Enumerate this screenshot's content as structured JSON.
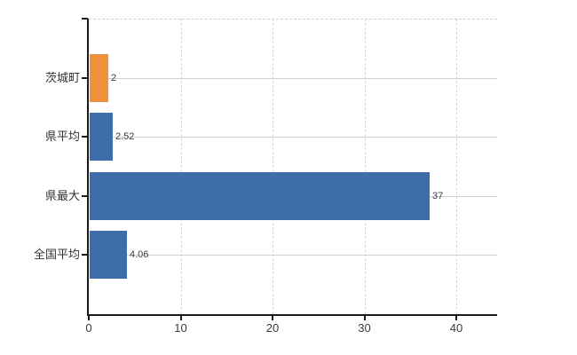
{
  "chart_data": {
    "type": "bar",
    "orientation": "horizontal",
    "title": "",
    "xlabel": "",
    "ylabel": "",
    "categories": [
      "茨城町",
      "県平均",
      "県最大",
      "全国平均"
    ],
    "values": [
      2,
      2.52,
      37,
      4.06
    ],
    "value_labels": [
      "2",
      "2.52",
      "37",
      "4.06"
    ],
    "series": [
      {
        "name": "値",
        "values": [
          2,
          2.52,
          37,
          4.06
        ],
        "colors": [
          "#EF9139",
          "#3E6DA9",
          "#3E6DA9",
          "#3E6DA9"
        ]
      }
    ],
    "x_ticks": [
      0,
      10,
      20,
      30,
      40
    ],
    "x_tick_labels": [
      "0",
      "10",
      "20",
      "30",
      "40"
    ],
    "xlim": [
      0,
      44.5
    ],
    "grid": true,
    "gridline_color_horizontal": "#ccd4cc",
    "gridline_color_vertical": "#d4d9d4",
    "axis_color": "#1a1a1a",
    "background_color": "#ffffff",
    "legend": "none"
  }
}
